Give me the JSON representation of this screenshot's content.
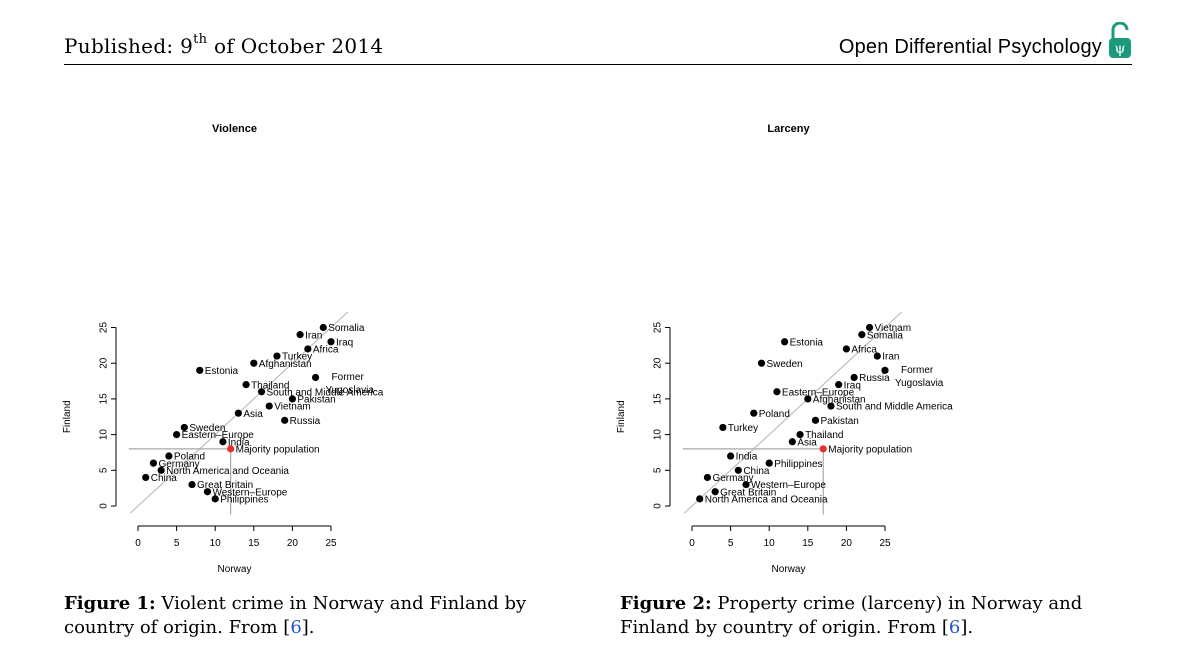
{
  "header": {
    "published_prefix": "Published: 9",
    "published_sup": "th",
    "published_suffix": " of October 2014",
    "journal": "Open Differential Psychology",
    "logo_color": "#1a9a7a"
  },
  "colors": {
    "point": "#000000",
    "highlight": "#e8302e",
    "diagonal": "#bfbfbf",
    "refline": "#a8a8a8",
    "reference_link": "#2255cc"
  },
  "captions": [
    {
      "label": "Figure 1:",
      "text": " Violent crime in Norway and Finland by country of origin. From [",
      "ref": "6",
      "end": "]."
    },
    {
      "label": "Figure 2:",
      "text": " Property crime (larceny) in Norway and Finland by country of origin. From [",
      "ref": "6",
      "end": "]."
    }
  ],
  "chart_data": [
    {
      "type": "scatter",
      "title": "Violence",
      "xlabel": "Norway",
      "ylabel": "Finland",
      "xlim": [
        0,
        25
      ],
      "ylim": [
        0,
        25
      ],
      "xticks": [
        0,
        5,
        10,
        15,
        20,
        25
      ],
      "yticks": [
        0,
        5,
        10,
        15,
        20,
        25
      ],
      "diagonal": "y = x",
      "majority": {
        "x": 12,
        "y": 8
      },
      "points": [
        {
          "label": "Somalia",
          "x": 24,
          "y": 25
        },
        {
          "label": "Iran",
          "x": 21,
          "y": 24
        },
        {
          "label": "Iraq",
          "x": 25,
          "y": 23
        },
        {
          "label": "Africa",
          "x": 22,
          "y": 22
        },
        {
          "label": "Turkey",
          "x": 18,
          "y": 21
        },
        {
          "label": "Afghanistan",
          "x": 15,
          "y": 20
        },
        {
          "label": "Estonia",
          "x": 8,
          "y": 19
        },
        {
          "label": "Former Yugoslavia",
          "x": 23,
          "y": 18
        },
        {
          "label": "Thailand",
          "x": 14,
          "y": 17
        },
        {
          "label": "South and Middle America",
          "x": 16,
          "y": 16
        },
        {
          "label": "Pakistan",
          "x": 20,
          "y": 15
        },
        {
          "label": "Vietnam",
          "x": 17,
          "y": 14
        },
        {
          "label": "Asia",
          "x": 13,
          "y": 13
        },
        {
          "label": "Russia",
          "x": 19,
          "y": 12
        },
        {
          "label": "Sweden",
          "x": 6,
          "y": 11
        },
        {
          "label": "Eastern–Europe",
          "x": 5,
          "y": 10
        },
        {
          "label": "India",
          "x": 11,
          "y": 9
        },
        {
          "label": "Majority population",
          "x": 12,
          "y": 8,
          "highlight": true
        },
        {
          "label": "Poland",
          "x": 4,
          "y": 7
        },
        {
          "label": "Germany",
          "x": 2,
          "y": 6
        },
        {
          "label": "North America and Oceania",
          "x": 3,
          "y": 5
        },
        {
          "label": "China",
          "x": 1,
          "y": 4
        },
        {
          "label": "Great Britain",
          "x": 7,
          "y": 3
        },
        {
          "label": "Western–Europe",
          "x": 9,
          "y": 2
        },
        {
          "label": "Philippines",
          "x": 10,
          "y": 1
        }
      ]
    },
    {
      "type": "scatter",
      "title": "Larceny",
      "xlabel": "Norway",
      "ylabel": "Finland",
      "xlim": [
        0,
        25
      ],
      "ylim": [
        0,
        25
      ],
      "xticks": [
        0,
        5,
        10,
        15,
        20,
        25
      ],
      "yticks": [
        0,
        5,
        10,
        15,
        20,
        25
      ],
      "diagonal": "y = x",
      "majority": {
        "x": 17,
        "y": 8
      },
      "points": [
        {
          "label": "Vietnam",
          "x": 23,
          "y": 25
        },
        {
          "label": "Somalia",
          "x": 22,
          "y": 24
        },
        {
          "label": "Estonia",
          "x": 12,
          "y": 23
        },
        {
          "label": "Africa",
          "x": 20,
          "y": 22
        },
        {
          "label": "Iran",
          "x": 24,
          "y": 21
        },
        {
          "label": "Sweden",
          "x": 9,
          "y": 20
        },
        {
          "label": "Former Yugoslavia",
          "x": 25,
          "y": 19
        },
        {
          "label": "Russia",
          "x": 21,
          "y": 18
        },
        {
          "label": "Iraq",
          "x": 19,
          "y": 17
        },
        {
          "label": "Eastern–Europe",
          "x": 11,
          "y": 16
        },
        {
          "label": "Afghanistan",
          "x": 15,
          "y": 15
        },
        {
          "label": "South and Middle America",
          "x": 18,
          "y": 14
        },
        {
          "label": "Poland",
          "x": 8,
          "y": 13
        },
        {
          "label": "Pakistan",
          "x": 16,
          "y": 12
        },
        {
          "label": "Turkey",
          "x": 4,
          "y": 11
        },
        {
          "label": "Thailand",
          "x": 14,
          "y": 10
        },
        {
          "label": "Asia",
          "x": 13,
          "y": 9
        },
        {
          "label": "Majority population",
          "x": 17,
          "y": 8,
          "highlight": true
        },
        {
          "label": "India",
          "x": 5,
          "y": 7
        },
        {
          "label": "Philippines",
          "x": 10,
          "y": 6
        },
        {
          "label": "China",
          "x": 6,
          "y": 5
        },
        {
          "label": "Germany",
          "x": 2,
          "y": 4
        },
        {
          "label": "Western–Europe",
          "x": 7,
          "y": 3
        },
        {
          "label": "Great Britain",
          "x": 3,
          "y": 2
        },
        {
          "label": "North America and Oceania",
          "x": 1,
          "y": 1
        }
      ]
    }
  ]
}
